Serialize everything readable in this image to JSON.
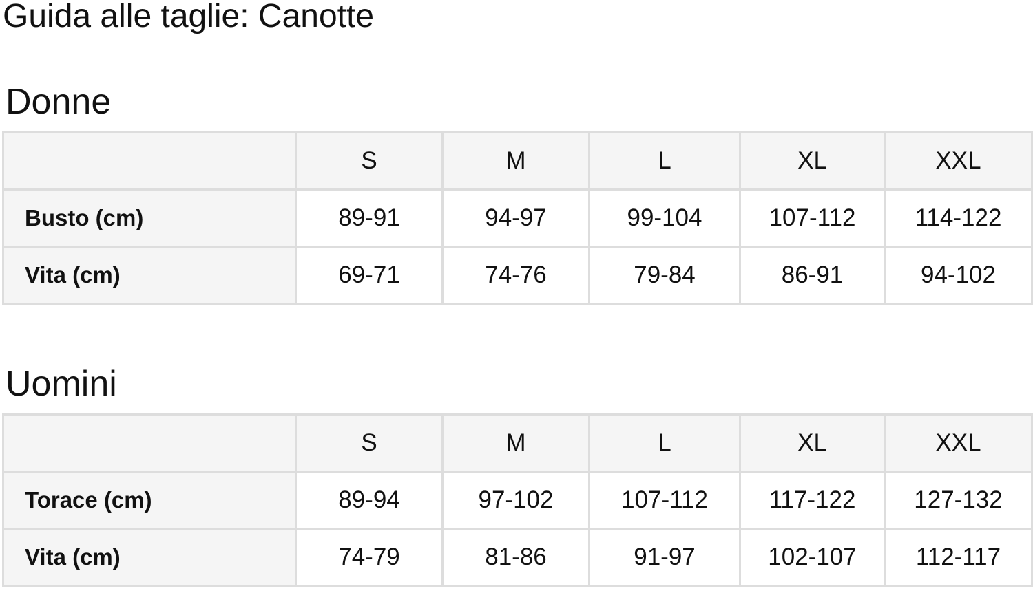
{
  "title": "Guida alle taglie: Canotte",
  "sizes": [
    "S",
    "M",
    "L",
    "XL",
    "XXL"
  ],
  "tables": [
    {
      "heading": "Donne",
      "rows": [
        {
          "label": "Busto (cm)",
          "values": [
            "89-91",
            "94-97",
            "99-104",
            "107-112",
            "114-122"
          ]
        },
        {
          "label": "Vita (cm)",
          "values": [
            "69-71",
            "74-76",
            "79-84",
            "86-91",
            "94-102"
          ]
        }
      ]
    },
    {
      "heading": "Uomini",
      "rows": [
        {
          "label": "Torace (cm)",
          "values": [
            "89-94",
            "97-102",
            "107-112",
            "117-122",
            "127-132"
          ]
        },
        {
          "label": "Vita (cm)",
          "values": [
            "74-79",
            "81-86",
            "91-97",
            "102-107",
            "112-117"
          ]
        }
      ]
    }
  ]
}
